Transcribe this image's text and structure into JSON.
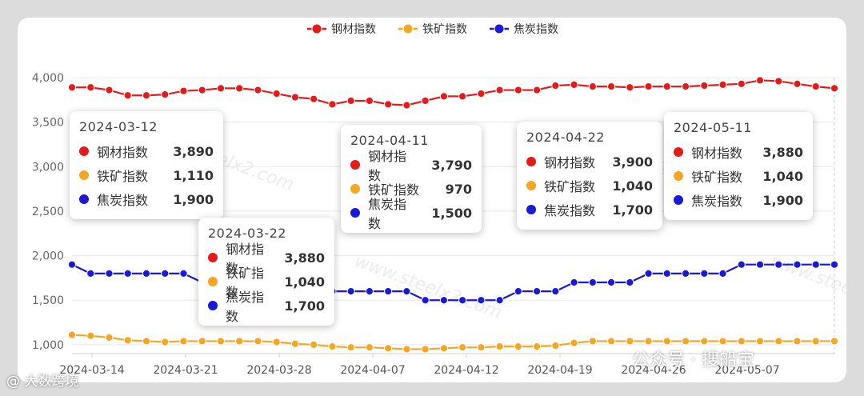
{
  "chart_data": {
    "type": "line",
    "title": "",
    "xlabel": "",
    "ylabel": "",
    "ylim": [
      900,
      4000
    ],
    "yticks": [
      "1,000",
      "1,500",
      "2,000",
      "2,500",
      "3,000",
      "3,500",
      "4,000"
    ],
    "x_tick_labels": [
      "2024-03-14",
      "2024-03-21",
      "2024-03-28",
      "2024-04-07",
      "2024-04-12",
      "2024-04-19",
      "2024-04-26",
      "2024-05-07"
    ],
    "legend_position": "top-center",
    "grid": true,
    "series": [
      {
        "name": "钢材指数",
        "color": "#e31b1b",
        "values": [
          3890,
          3890,
          3860,
          3800,
          3800,
          3810,
          3850,
          3860,
          3880,
          3880,
          3860,
          3820,
          3780,
          3760,
          3700,
          3740,
          3740,
          3700,
          3690,
          3740,
          3790,
          3790,
          3820,
          3860,
          3860,
          3860,
          3910,
          3920,
          3900,
          3900,
          3890,
          3900,
          3900,
          3900,
          3910,
          3920,
          3930,
          3970,
          3960,
          3930,
          3900,
          3880
        ]
      },
      {
        "name": "铁矿指数",
        "color": "#f5a623",
        "values": [
          1110,
          1100,
          1080,
          1050,
          1040,
          1030,
          1040,
          1040,
          1040,
          1040,
          1040,
          1030,
          1010,
          1000,
          980,
          970,
          970,
          960,
          950,
          950,
          960,
          970,
          970,
          980,
          980,
          980,
          990,
          1020,
          1040,
          1040,
          1040,
          1040,
          1040,
          1040,
          1040,
          1040,
          1040,
          1040,
          1040,
          1040,
          1040,
          1040
        ]
      },
      {
        "name": "焦炭指数",
        "color": "#1a1ad6",
        "values": [
          1900,
          1800,
          1800,
          1800,
          1800,
          1800,
          1800,
          1700,
          1700,
          1700,
          1700,
          1650,
          1600,
          1600,
          1600,
          1600,
          1600,
          1600,
          1600,
          1500,
          1500,
          1500,
          1500,
          1500,
          1600,
          1600,
          1600,
          1700,
          1700,
          1700,
          1700,
          1800,
          1800,
          1800,
          1800,
          1800,
          1900,
          1900,
          1900,
          1900,
          1900,
          1900
        ]
      }
    ]
  },
  "tooltips": [
    {
      "date": "2024-03-12",
      "rows": [
        {
          "name": "钢材指数",
          "value": "3,890",
          "color": "#e31b1b"
        },
        {
          "name": "铁矿指数",
          "value": "1,110",
          "color": "#f5a623"
        },
        {
          "name": "焦炭指数",
          "value": "1,900",
          "color": "#1a1ad6"
        }
      ]
    },
    {
      "date": "2024-03-22",
      "rows": [
        {
          "name": "钢材指数",
          "value": "3,880",
          "color": "#e31b1b"
        },
        {
          "name": "铁矿指数",
          "value": "1,040",
          "color": "#f5a623"
        },
        {
          "name": "焦炭指数",
          "value": "1,700",
          "color": "#1a1ad6"
        }
      ]
    },
    {
      "date": "2024-04-11",
      "rows": [
        {
          "name": "钢材指数",
          "value": "3,790",
          "color": "#e31b1b"
        },
        {
          "name": "铁矿指数",
          "value": "970",
          "color": "#f5a623"
        },
        {
          "name": "焦炭指数",
          "value": "1,500",
          "color": "#1a1ad6"
        }
      ]
    },
    {
      "date": "2024-04-22",
      "rows": [
        {
          "name": "钢材指数",
          "value": "3,900",
          "color": "#e31b1b"
        },
        {
          "name": "铁矿指数",
          "value": "1,040",
          "color": "#f5a623"
        },
        {
          "name": "焦炭指数",
          "value": "1,700",
          "color": "#1a1ad6"
        }
      ]
    },
    {
      "date": "2024-05-11",
      "rows": [
        {
          "name": "钢材指数",
          "value": "3,880",
          "color": "#e31b1b"
        },
        {
          "name": "铁矿指数",
          "value": "1,040",
          "color": "#f5a623"
        },
        {
          "name": "焦炭指数",
          "value": "1,900",
          "color": "#1a1ad6"
        }
      ]
    }
  ],
  "watermarks": {
    "bottom_left": "@ 大数跨境",
    "bottom_right": "公众号 · 搜船宝",
    "background": "www.steelx2.com"
  }
}
